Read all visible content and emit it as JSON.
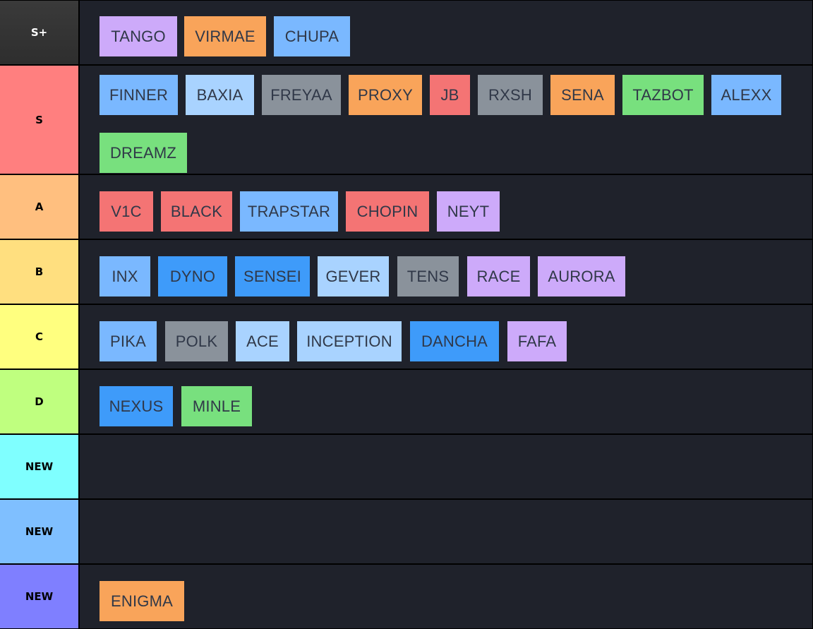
{
  "tiers": [
    {
      "label": "S+",
      "color": "#383838",
      "items": [
        {
          "name": "TANGO",
          "color": "purple"
        },
        {
          "name": "VIRMAE",
          "color": "orange"
        },
        {
          "name": "CHUPA",
          "color": "ltblue"
        }
      ]
    },
    {
      "label": "S",
      "color": "#ff7f7f",
      "items": [
        {
          "name": "FINNER",
          "color": "ltblue"
        },
        {
          "name": "BAXIA",
          "color": "paleblue"
        },
        {
          "name": "FREYAA",
          "color": "gray"
        },
        {
          "name": "PROXY",
          "color": "orange"
        },
        {
          "name": "JB",
          "color": "red"
        },
        {
          "name": "RXSH",
          "color": "gray"
        },
        {
          "name": "SENA",
          "color": "orange"
        },
        {
          "name": "TAZBOT",
          "color": "green"
        },
        {
          "name": "ALEXX",
          "color": "ltblue"
        },
        {
          "name": "DREAMZ",
          "color": "green"
        }
      ]
    },
    {
      "label": "A",
      "color": "#ffbf7f",
      "items": [
        {
          "name": "V1C",
          "color": "red"
        },
        {
          "name": "BLACK",
          "color": "red"
        },
        {
          "name": "TRAPSTAR",
          "color": "ltblue"
        },
        {
          "name": "CHOPIN",
          "color": "red"
        },
        {
          "name": "NEYT",
          "color": "purple"
        }
      ]
    },
    {
      "label": "B",
      "color": "#ffdf7f",
      "items": [
        {
          "name": "INX",
          "color": "ltblue"
        },
        {
          "name": "DYNO",
          "color": "blue"
        },
        {
          "name": "SENSEI",
          "color": "blue"
        },
        {
          "name": "GEVER",
          "color": "paleblue"
        },
        {
          "name": "TENS",
          "color": "gray"
        },
        {
          "name": "RACE",
          "color": "purple"
        },
        {
          "name": "AURORA",
          "color": "purple"
        }
      ]
    },
    {
      "label": "C",
      "color": "#ffff7f",
      "items": [
        {
          "name": "PIKA",
          "color": "ltblue"
        },
        {
          "name": "POLK",
          "color": "gray"
        },
        {
          "name": "ACE",
          "color": "paleblue"
        },
        {
          "name": "INCEPTION",
          "color": "paleblue"
        },
        {
          "name": "DANCHA",
          "color": "blue"
        },
        {
          "name": "FAFA",
          "color": "purple"
        }
      ]
    },
    {
      "label": "D",
      "color": "#bfff7f",
      "items": [
        {
          "name": "NEXUS",
          "color": "blue"
        },
        {
          "name": "MINLE",
          "color": "green"
        }
      ]
    },
    {
      "label": "NEW",
      "color": "#7fffff",
      "items": []
    },
    {
      "label": "NEW",
      "color": "#7fbfff",
      "items": []
    },
    {
      "label": "NEW",
      "color": "#7f7fff",
      "items": [
        {
          "name": "ENIGMA",
          "color": "orange"
        }
      ]
    }
  ]
}
